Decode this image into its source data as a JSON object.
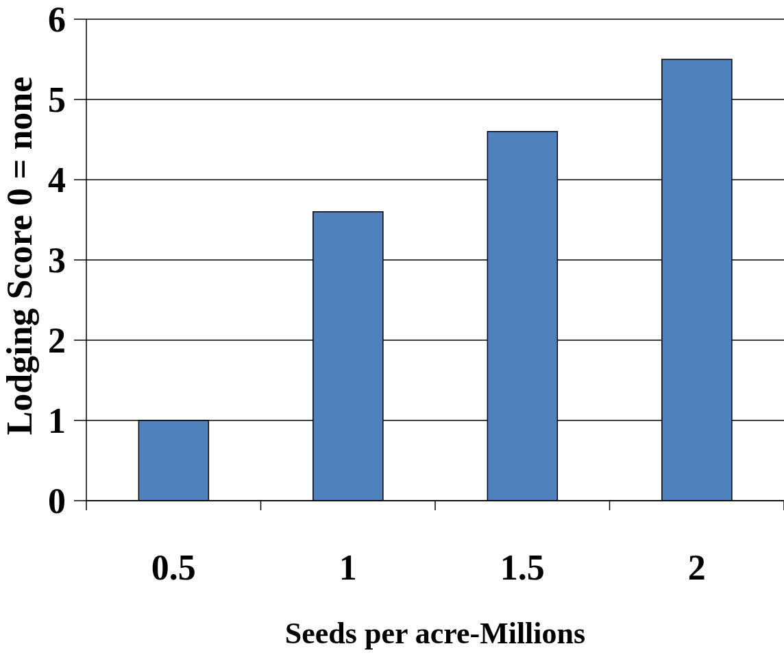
{
  "chart_data": {
    "type": "bar",
    "xlabel": "Seeds per acre-Millions",
    "ylabel": "Lodging Score 0 = none",
    "categories": [
      "0.5",
      "1",
      "1.5",
      "2"
    ],
    "values": [
      1,
      3.6,
      4.6,
      5.5
    ],
    "color": "#4f81bd",
    "ylim": [
      0,
      6
    ],
    "yticks": [
      0,
      1,
      2,
      3,
      4,
      5,
      6
    ],
    "grid": "y"
  }
}
